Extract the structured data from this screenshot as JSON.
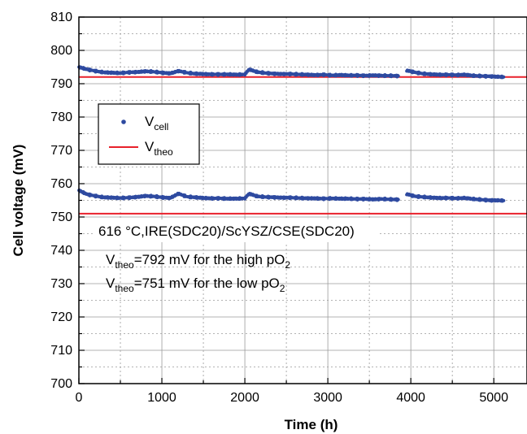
{
  "chart_data": {
    "type": "scatter",
    "xlabel": "Time (h)",
    "ylabel": "Cell voltage (mV)",
    "xlim": [
      0,
      5400
    ],
    "ylim": [
      700,
      810
    ],
    "x_ticks": [
      0,
      1000,
      2000,
      3000,
      4000,
      5000
    ],
    "y_ticks": [
      700,
      710,
      720,
      730,
      740,
      750,
      760,
      770,
      780,
      790,
      800,
      810
    ],
    "grid": true,
    "legend_position": "upper-left",
    "series": [
      {
        "label_main": "V",
        "label_sub": "cell",
        "kind": "scatter",
        "color": "#2e4aa0",
        "segments": [
          {
            "points": [
              [
                0,
                795.0
              ],
              [
                100,
                794.3
              ],
              [
                200,
                793.8
              ],
              [
                300,
                793.4
              ],
              [
                400,
                793.3
              ],
              [
                500,
                793.2
              ],
              [
                600,
                793.4
              ],
              [
                700,
                793.5
              ],
              [
                800,
                793.7
              ],
              [
                900,
                793.6
              ],
              [
                1000,
                793.3
              ],
              [
                1100,
                793.1
              ],
              [
                1200,
                793.8
              ],
              [
                1300,
                793.3
              ],
              [
                1400,
                793.0
              ],
              [
                1500,
                792.9
              ],
              [
                1600,
                792.8
              ],
              [
                1700,
                792.8
              ],
              [
                1800,
                792.8
              ],
              [
                1900,
                792.7
              ],
              [
                2000,
                792.8
              ],
              [
                2050,
                794.3
              ],
              [
                2150,
                793.5
              ],
              [
                2250,
                793.2
              ],
              [
                2350,
                793.0
              ],
              [
                2450,
                792.9
              ],
              [
                2550,
                792.9
              ],
              [
                2650,
                792.8
              ],
              [
                2750,
                792.7
              ],
              [
                2850,
                792.6
              ],
              [
                2950,
                792.7
              ],
              [
                3050,
                792.5
              ],
              [
                3150,
                792.6
              ],
              [
                3250,
                792.5
              ],
              [
                3350,
                792.5
              ],
              [
                3450,
                792.4
              ],
              [
                3550,
                792.5
              ],
              [
                3650,
                792.4
              ],
              [
                3750,
                792.4
              ],
              [
                3850,
                792.3
              ]
            ]
          },
          {
            "points": [
              [
                3950,
                794.0
              ],
              [
                4050,
                793.4
              ],
              [
                4150,
                793.0
              ],
              [
                4250,
                792.8
              ],
              [
                4350,
                792.7
              ],
              [
                4450,
                792.7
              ],
              [
                4550,
                792.6
              ],
              [
                4650,
                792.7
              ],
              [
                4750,
                792.4
              ],
              [
                4850,
                792.3
              ],
              [
                4950,
                792.2
              ],
              [
                5050,
                792.1
              ],
              [
                5120,
                792.0
              ]
            ]
          },
          {
            "points": [
              [
                0,
                758.0
              ],
              [
                100,
                756.8
              ],
              [
                200,
                756.3
              ],
              [
                300,
                755.9
              ],
              [
                400,
                755.8
              ],
              [
                500,
                755.7
              ],
              [
                600,
                755.8
              ],
              [
                700,
                756.0
              ],
              [
                800,
                756.3
              ],
              [
                900,
                756.2
              ],
              [
                1000,
                755.9
              ],
              [
                1100,
                755.7
              ],
              [
                1200,
                757.0
              ],
              [
                1300,
                756.1
              ],
              [
                1400,
                755.9
              ],
              [
                1500,
                755.7
              ],
              [
                1600,
                755.6
              ],
              [
                1700,
                755.6
              ],
              [
                1800,
                755.5
              ],
              [
                1900,
                755.5
              ],
              [
                2000,
                755.6
              ],
              [
                2050,
                757.0
              ],
              [
                2150,
                756.2
              ],
              [
                2250,
                756.0
              ],
              [
                2350,
                755.9
              ],
              [
                2450,
                755.8
              ],
              [
                2550,
                755.8
              ],
              [
                2650,
                755.7
              ],
              [
                2750,
                755.6
              ],
              [
                2850,
                755.6
              ],
              [
                2950,
                755.5
              ],
              [
                3050,
                755.6
              ],
              [
                3150,
                755.5
              ],
              [
                3250,
                755.5
              ],
              [
                3350,
                755.4
              ],
              [
                3450,
                755.4
              ],
              [
                3550,
                755.3
              ],
              [
                3650,
                755.4
              ],
              [
                3750,
                755.3
              ],
              [
                3850,
                755.2
              ]
            ]
          },
          {
            "points": [
              [
                3950,
                756.9
              ],
              [
                4050,
                756.2
              ],
              [
                4150,
                756.0
              ],
              [
                4250,
                755.8
              ],
              [
                4350,
                755.7
              ],
              [
                4450,
                755.7
              ],
              [
                4550,
                755.6
              ],
              [
                4650,
                755.7
              ],
              [
                4750,
                755.4
              ],
              [
                4850,
                755.2
              ],
              [
                4950,
                755.0
              ],
              [
                5050,
                755.0
              ],
              [
                5120,
                754.9
              ]
            ]
          }
        ]
      },
      {
        "label_main": "V",
        "label_sub": "theo",
        "kind": "line",
        "color": "#e8212b",
        "lines": [
          {
            "y": 792,
            "x": [
              0,
              5400
            ]
          },
          {
            "y": 751,
            "x": [
              0,
              5400
            ]
          }
        ]
      }
    ],
    "annotations": {
      "condition": "616 °C,IRE(SDC20)/ScYSZ/CSE(SDC20)",
      "line1": {
        "v": "V",
        "sub": "theo",
        "rest": "=792 mV for the high pO",
        "subscript": "2"
      },
      "line2": {
        "v": "V",
        "sub": "theo",
        "rest": "=751 mV for the low pO",
        "subscript": "2"
      }
    }
  }
}
